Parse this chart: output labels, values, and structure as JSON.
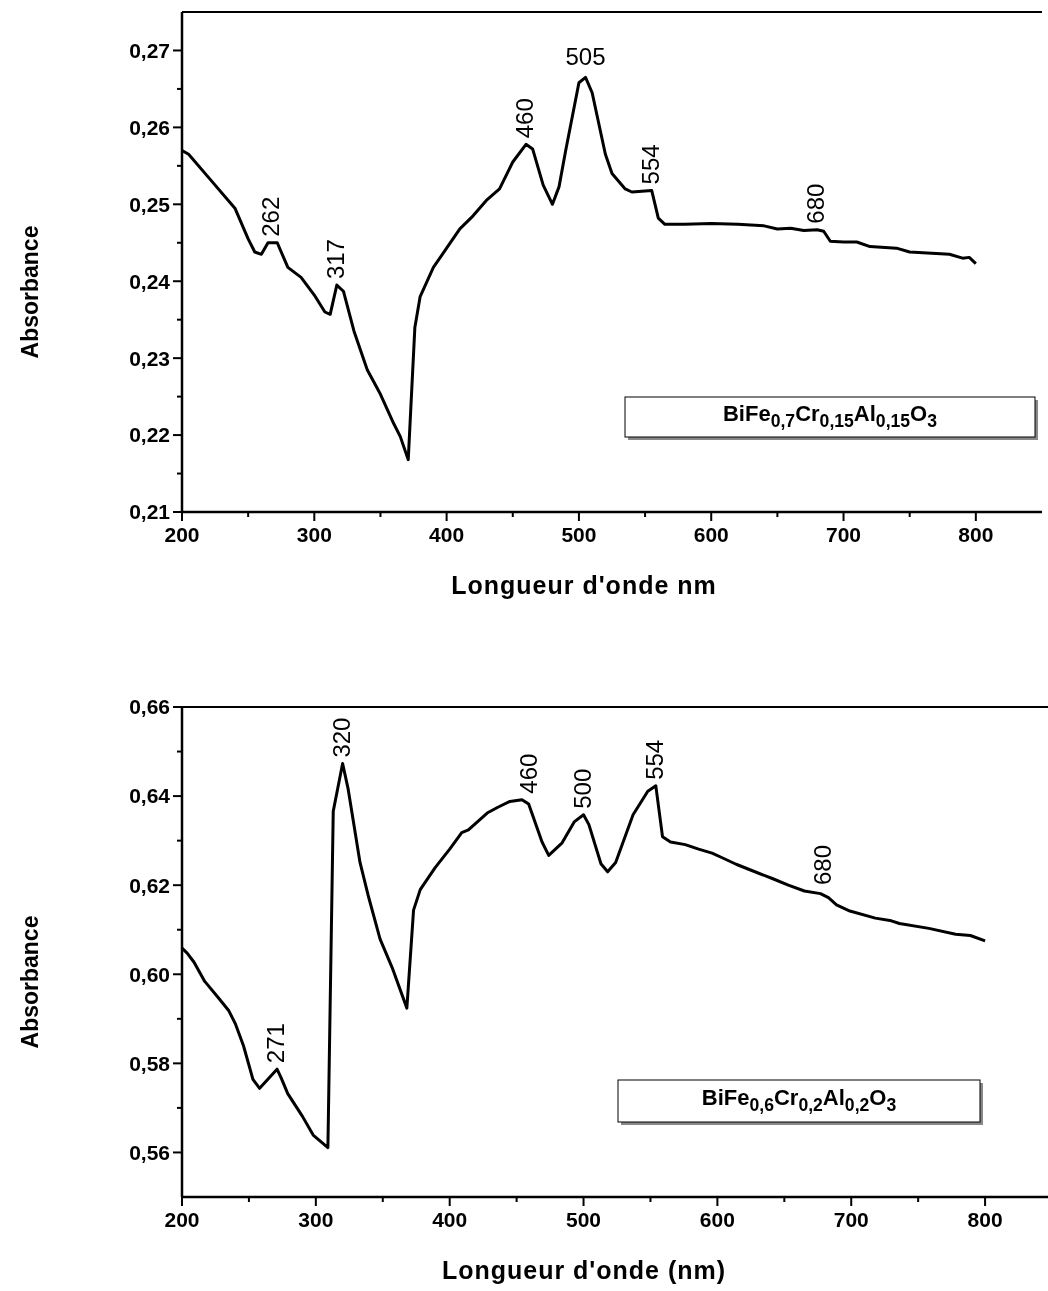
{
  "chart_data": [
    {
      "type": "line",
      "xlabel": "Longueur d'onde nm",
      "ylabel": "Absorbance",
      "x": [
        200,
        205,
        220,
        240,
        250,
        255,
        260,
        265,
        272,
        280,
        290,
        300,
        308,
        312,
        317,
        322,
        330,
        340,
        350,
        360,
        365,
        371,
        376,
        380,
        390,
        400,
        410,
        420,
        430,
        440,
        450,
        460,
        465,
        473,
        480,
        485,
        490,
        500,
        505,
        510,
        520,
        525,
        535,
        540,
        555,
        560,
        565,
        580,
        600,
        620,
        640,
        650,
        660,
        670,
        680,
        685,
        690,
        700,
        710,
        720,
        740,
        750,
        760,
        780,
        790,
        795,
        800
      ],
      "values": [
        0.257,
        0.2565,
        0.2535,
        0.2495,
        0.2455,
        0.2438,
        0.2435,
        0.245,
        0.245,
        0.2418,
        0.2405,
        0.2382,
        0.236,
        0.2357,
        0.2395,
        0.2387,
        0.2335,
        0.2285,
        0.2253,
        0.2215,
        0.2198,
        0.2168,
        0.234,
        0.238,
        0.2418,
        0.2443,
        0.2468,
        0.2485,
        0.2505,
        0.252,
        0.2555,
        0.2578,
        0.2572,
        0.2525,
        0.25,
        0.2523,
        0.257,
        0.2658,
        0.2665,
        0.2645,
        0.2565,
        0.254,
        0.252,
        0.2516,
        0.2518,
        0.2482,
        0.2474,
        0.2474,
        0.2475,
        0.2474,
        0.2472,
        0.2468,
        0.2469,
        0.2466,
        0.2467,
        0.2465,
        0.2452,
        0.2451,
        0.2451,
        0.2445,
        0.2443,
        0.2438,
        0.2437,
        0.2435,
        0.243,
        0.2431,
        0.2423
      ],
      "color": "#000000",
      "xlim": [
        200,
        850
      ],
      "ylim": [
        0.21,
        0.275
      ],
      "xticks": [
        200,
        {
          "value": 250,
          "label": null
        },
        300,
        {
          "value": 350,
          "label": null
        },
        400,
        {
          "value": 450,
          "label": null
        },
        500,
        {
          "value": 550,
          "label": null
        },
        600,
        {
          "value": 650,
          "label": null
        },
        700,
        {
          "value": 750,
          "label": null
        },
        800
      ],
      "yticks": [
        {
          "value": 0.21,
          "label": "0,21"
        },
        {
          "value": 0.215,
          "label": null
        },
        {
          "value": 0.22,
          "label": "0,22"
        },
        {
          "value": 0.225,
          "label": null
        },
        {
          "value": 0.23,
          "label": "0,23"
        },
        {
          "value": 0.235,
          "label": null
        },
        {
          "value": 0.24,
          "label": "0,24"
        },
        {
          "value": 0.245,
          "label": null
        },
        {
          "value": 0.25,
          "label": "0,25"
        },
        {
          "value": 0.255,
          "label": null
        },
        {
          "value": 0.26,
          "label": "0,26"
        },
        {
          "value": 0.265,
          "label": null
        },
        {
          "value": 0.27,
          "label": "0,27"
        }
      ],
      "annotations": [
        {
          "text": "262",
          "x": 268,
          "y": 0.245
        },
        {
          "text": "317",
          "x": 317,
          "y": 0.2395
        },
        {
          "text": "460",
          "x": 460,
          "y": 0.2578
        },
        {
          "text": "505",
          "x": 505,
          "y": 0.2665
        },
        {
          "text": "554",
          "x": 555,
          "y": 0.2518
        },
        {
          "text": "680",
          "x": 680,
          "y": 0.2467
        },
        "BiFe$_{0,7}$Cr$_{0,15}$Al$_{0,15}$O$_{3}$"
      ]
    },
    {
      "type": "line",
      "xlabel": "Longueur d'onde (nm)",
      "ylabel": "Absorbance",
      "x": [
        200,
        204,
        209,
        217,
        227,
        235,
        240,
        246,
        253,
        258,
        271,
        274,
        279,
        290,
        298,
        309,
        313,
        320,
        324,
        333,
        339,
        348,
        357,
        368,
        373,
        378,
        389,
        400,
        409,
        414,
        428,
        436,
        445,
        454,
        459,
        469,
        474,
        484,
        493,
        500,
        504,
        513,
        518,
        524,
        537,
        548,
        554,
        559,
        565,
        576,
        586,
        596,
        604,
        614,
        629,
        641,
        653,
        665,
        677,
        683,
        689,
        699,
        718,
        730,
        736,
        758,
        778,
        789,
        800
      ],
      "values": [
        0.6059,
        0.6047,
        0.6027,
        0.5984,
        0.5948,
        0.5918,
        0.5888,
        0.5839,
        0.5764,
        0.5744,
        0.5787,
        0.5768,
        0.5732,
        0.5681,
        0.5639,
        0.5611,
        0.6366,
        0.6473,
        0.6418,
        0.6251,
        0.6178,
        0.6079,
        0.6015,
        0.5924,
        0.6144,
        0.619,
        0.6239,
        0.6281,
        0.6318,
        0.6324,
        0.6362,
        0.6375,
        0.6388,
        0.6392,
        0.6382,
        0.6297,
        0.6267,
        0.6295,
        0.6342,
        0.6358,
        0.6336,
        0.6248,
        0.623,
        0.6251,
        0.6358,
        0.6411,
        0.6423,
        0.6309,
        0.6297,
        0.6291,
        0.6281,
        0.6272,
        0.6261,
        0.6247,
        0.6229,
        0.6215,
        0.62,
        0.6187,
        0.6181,
        0.6172,
        0.6156,
        0.6142,
        0.6126,
        0.612,
        0.6114,
        0.6103,
        0.609,
        0.6087,
        0.6075
      ],
      "color": "#000000",
      "xlim": [
        200,
        850
      ],
      "ylim": [
        0.55,
        0.66
      ],
      "xticks": [
        200,
        {
          "value": 250,
          "label": null
        },
        300,
        {
          "value": 350,
          "label": null
        },
        400,
        {
          "value": 450,
          "label": null
        },
        500,
        {
          "value": 550,
          "label": null
        },
        600,
        {
          "value": 650,
          "label": null
        },
        700,
        {
          "value": 750,
          "label": null
        },
        800
      ],
      "yticks": [
        {
          "value": 0.56,
          "label": "0,56"
        },
        {
          "value": 0.57,
          "label": null
        },
        {
          "value": 0.58,
          "label": "0,58"
        },
        {
          "value": 0.59,
          "label": null
        },
        {
          "value": 0.6,
          "label": "0,60"
        },
        {
          "value": 0.61,
          "label": null
        },
        {
          "value": 0.62,
          "label": "0,62"
        },
        {
          "value": 0.63,
          "label": null
        },
        {
          "value": 0.64,
          "label": "0,64"
        },
        {
          "value": 0.65,
          "label": null
        },
        {
          "value": 0.66,
          "label": "0,66"
        }
      ],
      "annotations": [
        {
          "text": "271",
          "x": 271,
          "y": 0.5787
        },
        {
          "text": "320",
          "x": 320,
          "y": 0.6473
        },
        {
          "text": "460",
          "x": 460,
          "y": 0.6392
        },
        {
          "text": "500",
          "x": 500,
          "y": 0.6358
        },
        {
          "text": "554",
          "x": 554,
          "y": 0.6423
        },
        {
          "text": "680",
          "x": 680,
          "y": 0.6187
        },
        "BiFe$_{0,6}$Cr$_{0,2}$Al$_{0,2}$O$_{3}$"
      ]
    }
  ]
}
